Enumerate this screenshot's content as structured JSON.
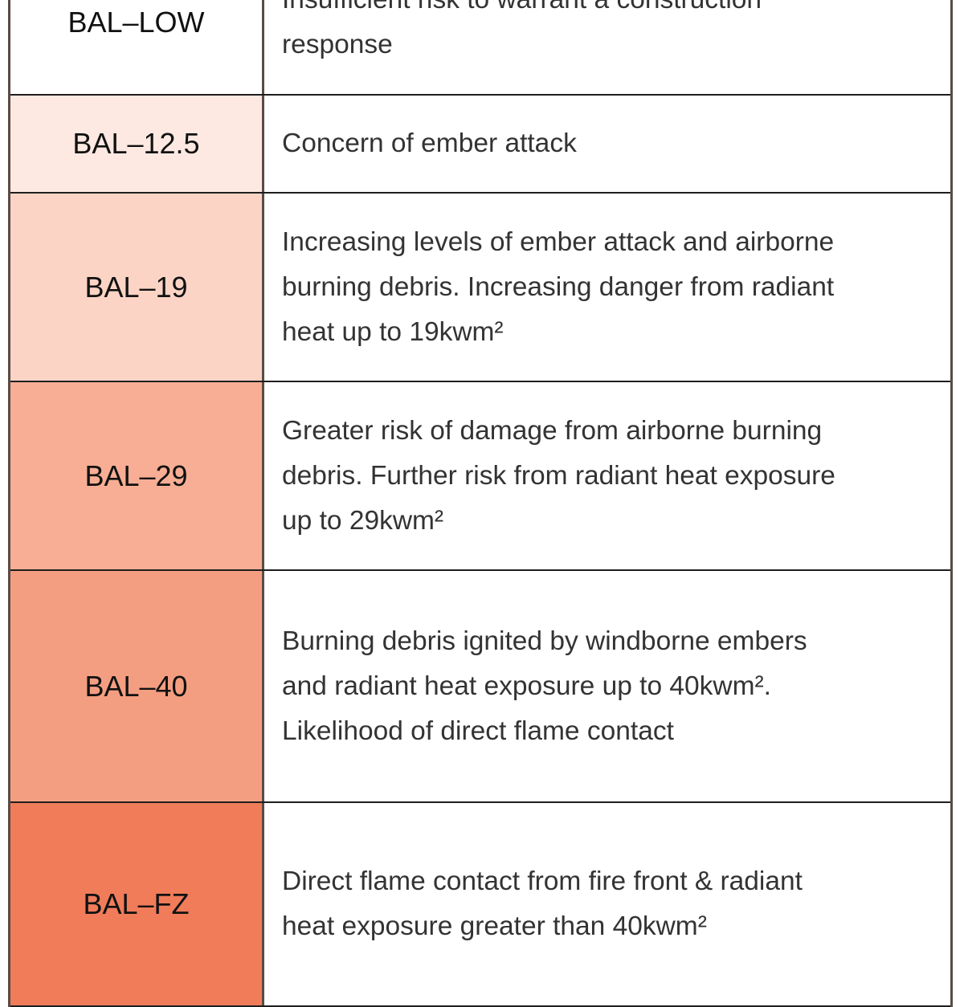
{
  "rows": [
    {
      "label": "BAL–LOW",
      "color": "#ffffff",
      "lines": [
        "Insufficient risk to warrant a construction",
        "response"
      ]
    },
    {
      "label": "BAL–12.5",
      "color": "#fde9e1",
      "lines": [
        "Concern of ember attack"
      ]
    },
    {
      "label": "BAL–19",
      "color": "#fbd4c5",
      "lines": [
        "Increasing levels of ember attack and airborne",
        "burning debris. Increasing danger from radiant",
        "heat up to 19kwm²"
      ]
    },
    {
      "label": "BAL–29",
      "color": "#f7ae94",
      "lines": [
        "Greater risk of damage from airborne burning",
        "debris. Further risk from radiant heat exposure",
        "up to 29kwm²"
      ]
    },
    {
      "label": "BAL–40",
      "color": "#f49e81",
      "lines": [
        "Burning debris ignited by windborne embers",
        "and radiant heat exposure up to 40kwm².",
        "Likelihood of direct flame contact"
      ]
    },
    {
      "label": "BAL–FZ",
      "color": "#f07c5a",
      "lines": [
        "Direct flame contact from fire front & radiant",
        "heat exposure greater than 40kwm²"
      ]
    }
  ]
}
